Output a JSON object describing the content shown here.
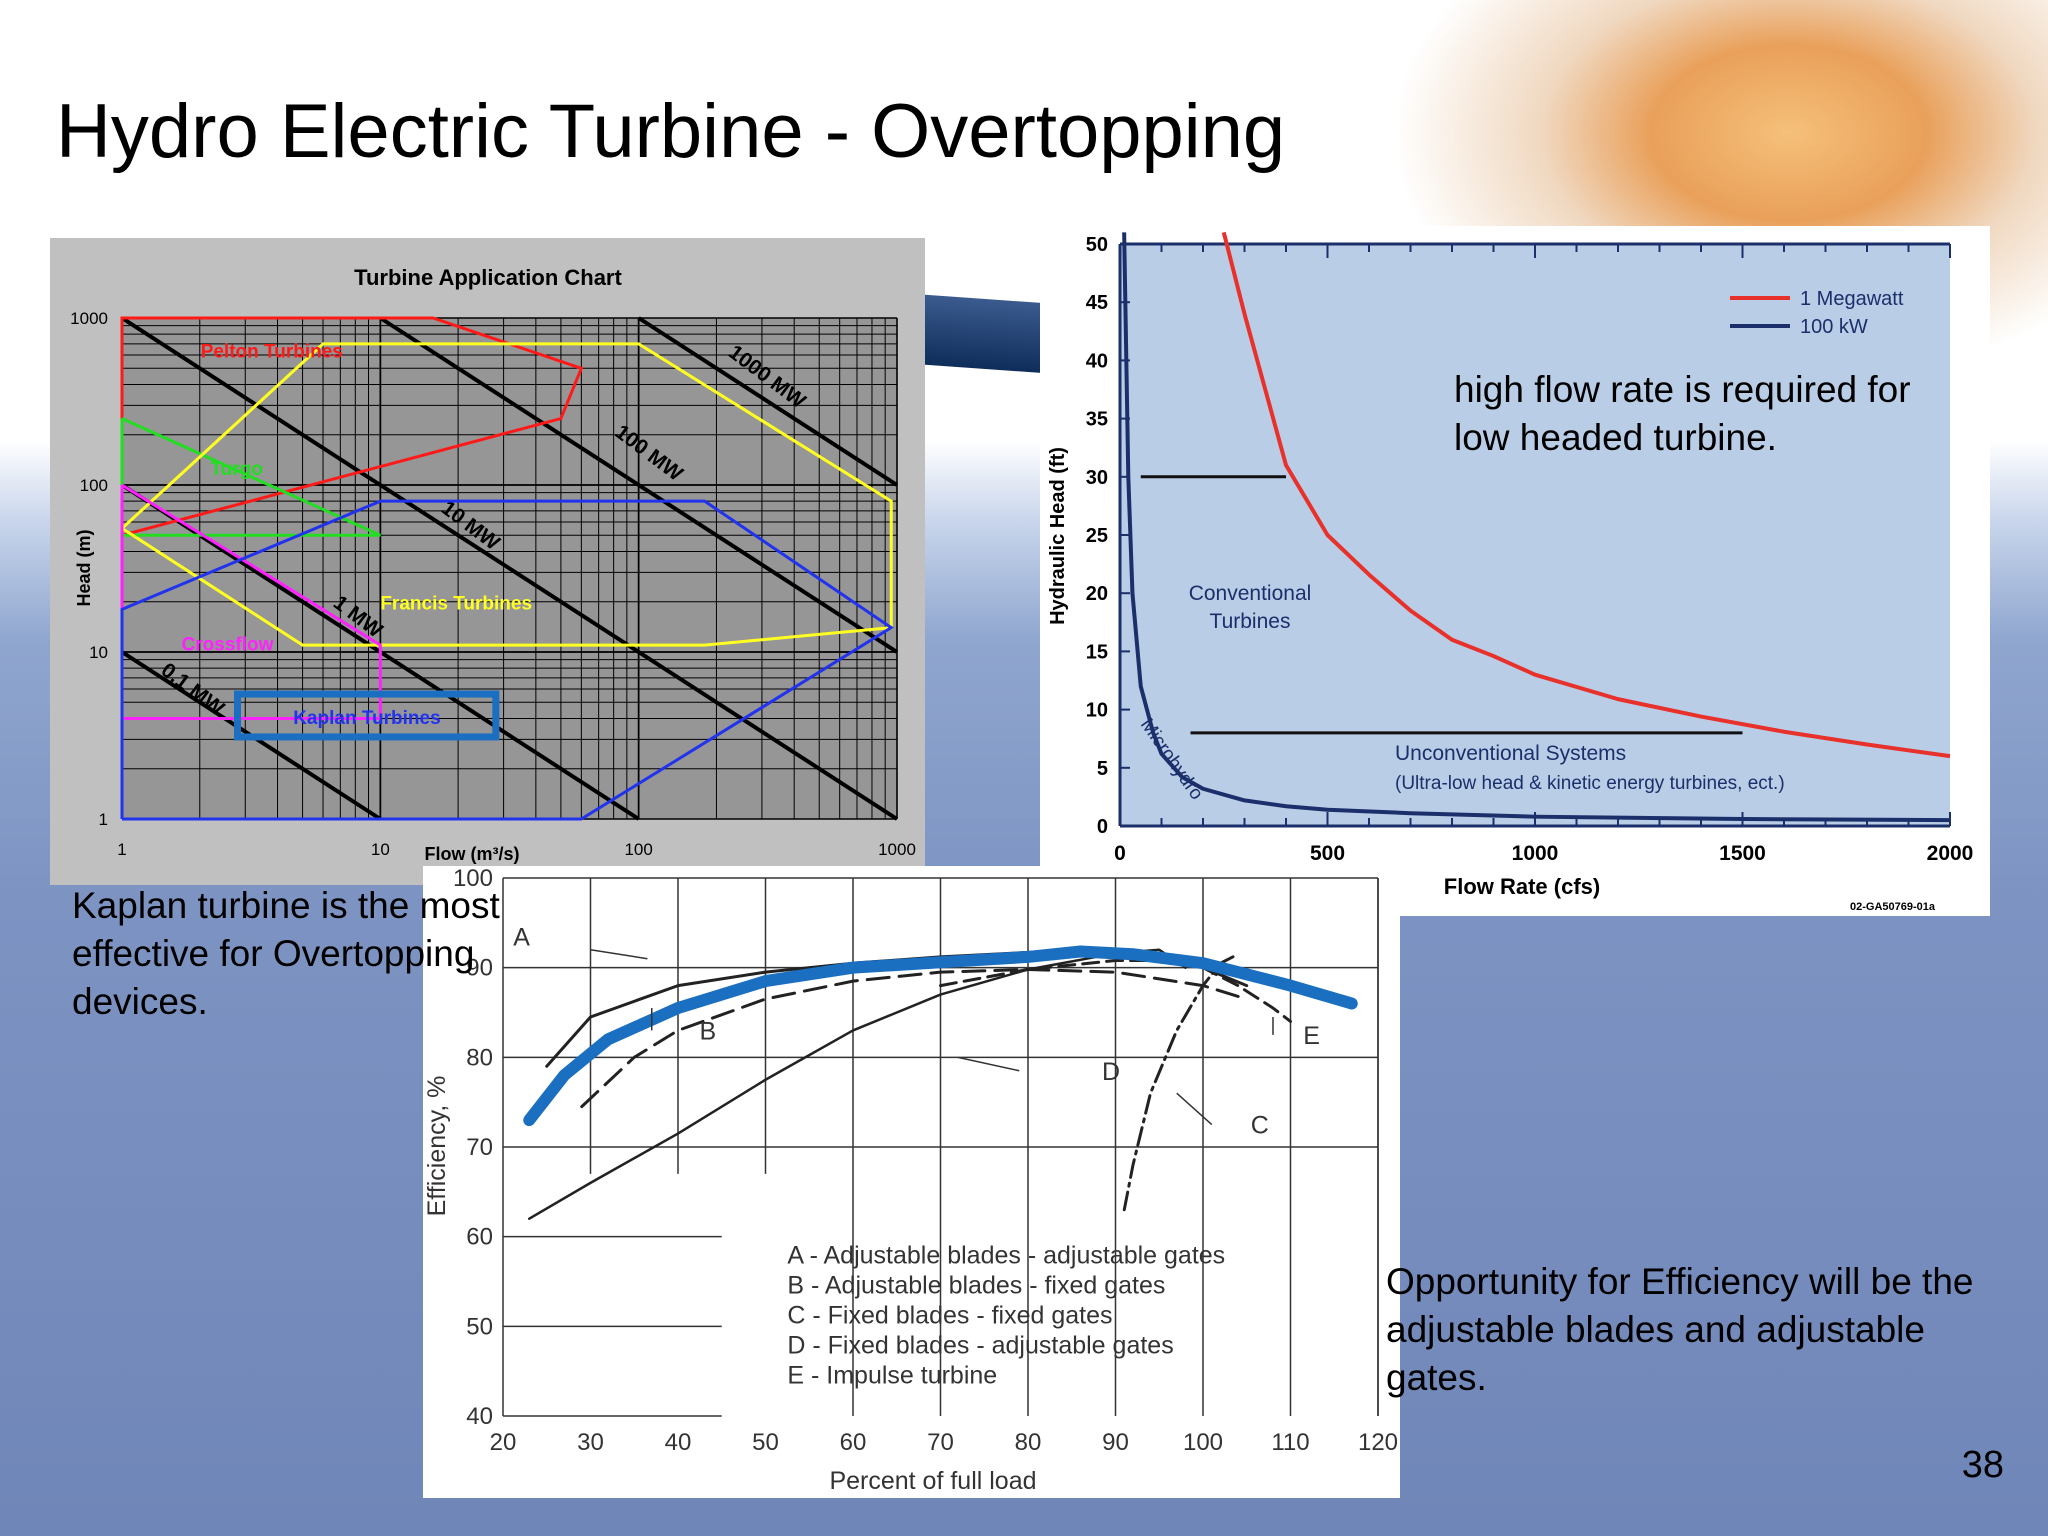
{
  "slide": {
    "title": "Hydro Electric Turbine - Overtopping",
    "caption_kaplan": "Kaplan turbine is the most effective for Overtopping devices.",
    "caption_flow": "high flow rate is required for low headed turbine.",
    "caption_efficiency": "Opportunity for Efficiency will be the adjustable blades and adjustable gates.",
    "page_number": "38",
    "colors": {
      "pelton": "#ff1a1a",
      "turgo": "#22dd22",
      "francis": "#ffff22",
      "crossflow": "#ff22ff",
      "kaplan": "#2233ee",
      "highlight": "#1a6fc0",
      "megawatt": "#e8312a",
      "hundred_kw": "#1b2f6b"
    }
  },
  "chart_data": [
    {
      "type": "line",
      "title": "Turbine Application Chart",
      "xlabel": "Flow (m³/s)",
      "ylabel": "Head (m)",
      "x_scale": "log",
      "y_scale": "log",
      "xlim": [
        1,
        1000
      ],
      "ylim": [
        1,
        1000
      ],
      "x_ticks": [
        "1",
        "10",
        "100",
        "1000"
      ],
      "y_ticks": [
        "1",
        "10",
        "100",
        "1000"
      ],
      "grid": true,
      "power_lines": [
        {
          "label": "0.1 MW",
          "mw": 0.1
        },
        {
          "label": "1 MW",
          "mw": 1
        },
        {
          "label": "10 MW",
          "mw": 10
        },
        {
          "label": "100 MW",
          "mw": 100
        },
        {
          "label": "1000 MW",
          "mw": 1000
        }
      ],
      "regions": [
        {
          "name": "Pelton Turbines",
          "color": "#ff1a1a",
          "points": [
            [
              1,
              50
            ],
            [
              1,
              1000
            ],
            [
              16,
              1000
            ],
            [
              60,
              500
            ],
            [
              50,
              250
            ],
            [
              1,
              50
            ]
          ]
        },
        {
          "name": "Turgo",
          "color": "#22dd22",
          "points": [
            [
              1,
              250
            ],
            [
              1,
              50
            ],
            [
              10,
              50
            ],
            [
              1,
              250
            ]
          ]
        },
        {
          "name": "Francis Turbines",
          "color": "#ffff22",
          "points": [
            [
              1,
              55
            ],
            [
              6,
              700
            ],
            [
              100,
              700
            ],
            [
              950,
              80
            ],
            [
              950,
              14
            ],
            [
              180,
              11
            ],
            [
              5,
              11
            ],
            [
              1,
              55
            ]
          ]
        },
        {
          "name": "Crossflow",
          "color": "#ff22ff",
          "points": [
            [
              1,
              100
            ],
            [
              10,
              11
            ],
            [
              10,
              4
            ],
            [
              1,
              4
            ],
            [
              1,
              100
            ]
          ]
        },
        {
          "name": "Kaplan Turbines",
          "color": "#2233ee",
          "points": [
            [
              1,
              1
            ],
            [
              60,
              1
            ],
            [
              950,
              14
            ],
            [
              180,
              80
            ],
            [
              10,
              80
            ],
            [
              1,
              18
            ],
            [
              1,
              1
            ]
          ]
        }
      ],
      "highlight_box": {
        "label": "Kaplan Turbines",
        "x": [
          2.8,
          28
        ],
        "y": [
          3.1,
          5.6
        ]
      }
    },
    {
      "type": "line",
      "xlabel": "Flow Rate (cfs)",
      "ylabel": "Hydraulic Head (ft)",
      "xlim": [
        0,
        2000
      ],
      "ylim": [
        0,
        50
      ],
      "x_ticks": [
        "0",
        "500",
        "1000",
        "1500",
        "2000"
      ],
      "y_ticks": [
        "0",
        "5",
        "10",
        "15",
        "20",
        "25",
        "30",
        "35",
        "40",
        "45",
        "50"
      ],
      "legend": "top-right",
      "series": [
        {
          "name": "1 Megawatt",
          "x": [
            250,
            300,
            350,
            400,
            450,
            500,
            600,
            700,
            800,
            900,
            1000,
            1200,
            1400,
            1600,
            1800,
            2000
          ],
          "y": [
            52,
            44,
            37.5,
            31,
            28,
            25,
            21.6,
            18.5,
            16,
            14.6,
            13,
            10.9,
            9.4,
            8.1,
            7,
            6
          ]
        },
        {
          "name": "100 kW",
          "x": [
            10,
            20,
            30,
            50,
            80,
            100,
            150,
            200,
            300,
            400,
            500,
            700,
            1000,
            1500,
            2000
          ],
          "y": [
            52,
            30,
            20,
            12,
            8,
            6.2,
            4.2,
            3.2,
            2.2,
            1.7,
            1.4,
            1.1,
            0.8,
            0.6,
            0.5
          ]
        }
      ],
      "reference_lines": [
        {
          "y": 30,
          "x": [
            50,
            400
          ]
        },
        {
          "y": 8,
          "x": [
            170,
            1500
          ]
        }
      ],
      "annotations": [
        "Conventional Turbines",
        "Unconventional Systems",
        "(Ultra-low head & kinetic energy turbines, ect.)",
        "Microhydro",
        "02-GA50769-01a"
      ]
    },
    {
      "type": "line",
      "xlabel": "Percent of full load",
      "ylabel": "Efficiency, %",
      "xlim": [
        20,
        120
      ],
      "ylim": [
        40,
        100
      ],
      "x_ticks": [
        "20",
        "30",
        "40",
        "50",
        "60",
        "70",
        "80",
        "90",
        "100",
        "110",
        "120"
      ],
      "y_ticks": [
        "40",
        "50",
        "60",
        "70",
        "80",
        "90",
        "100"
      ],
      "series": [
        {
          "name": "A",
          "x": [
            25,
            30,
            40,
            50,
            60,
            70,
            80,
            90,
            95,
            100,
            105
          ],
          "y": [
            79,
            84.5,
            88,
            89.5,
            90.5,
            91.2,
            91.7,
            92,
            91.5,
            90,
            88
          ]
        },
        {
          "name": "B",
          "x": [
            29,
            35,
            40,
            50,
            60,
            70,
            80,
            90,
            100,
            105
          ],
          "y": [
            74.5,
            80,
            83,
            86.5,
            88.5,
            89.5,
            89.8,
            89.5,
            88,
            86.5
          ]
        },
        {
          "name": "C",
          "x": [
            91,
            92,
            94,
            97,
            100,
            102,
            104
          ],
          "y": [
            63,
            68,
            76,
            83,
            88,
            90.5,
            91.5
          ]
        },
        {
          "name": "D",
          "x": [
            23,
            30,
            40,
            50,
            60,
            70,
            80,
            90,
            95,
            98
          ],
          "y": [
            62,
            66,
            71.5,
            77.5,
            83,
            87,
            89.8,
            91.6,
            92,
            90
          ]
        },
        {
          "name": "E",
          "x": [
            70,
            80,
            90,
            95,
            100,
            104,
            108,
            110
          ],
          "y": [
            88,
            89.8,
            90.8,
            90.8,
            90,
            88,
            85.5,
            84
          ]
        },
        {
          "name": "",
          "x": [
            23,
            27,
            32,
            40,
            50,
            60,
            70,
            80,
            86,
            92,
            100,
            110,
            117
          ],
          "y": [
            73,
            78,
            82,
            85.5,
            88.5,
            90,
            90.6,
            91.2,
            91.8,
            91.5,
            90.5,
            88,
            86
          ]
        }
      ],
      "legend_entries": [
        "A - Adjustable blades - adjustable gates",
        "B - Adjustable blades - fixed gates",
        "C - Fixed blades - fixed gates",
        "D - Fixed blades - adjustable gates",
        "E - Impulse turbine"
      ]
    }
  ]
}
